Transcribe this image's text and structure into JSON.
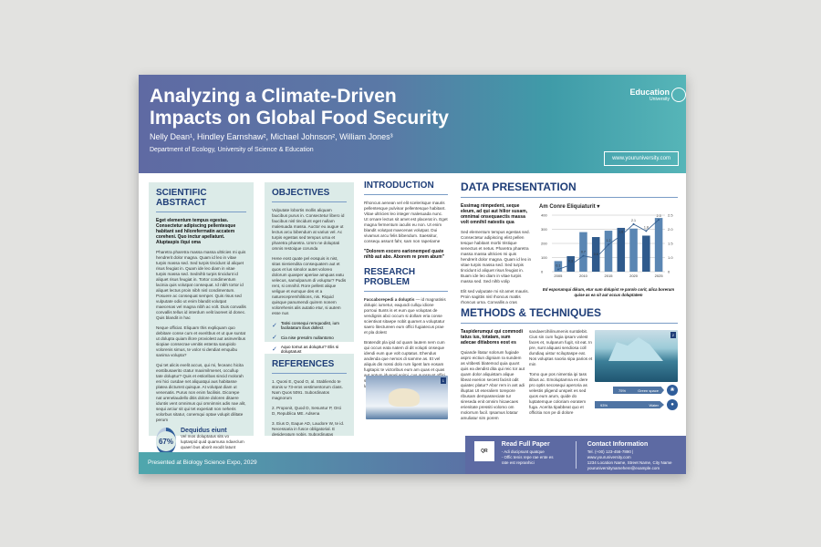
{
  "header": {
    "title_line1": "Analyzing a Climate-Driven",
    "title_line2": "Impacts on Global Food Security",
    "authors": "Nelly Dean¹, Hindley Earnshaw², Michael Johnson², William Jones³",
    "department": "Department of Ecology, University of Science & Education",
    "logo_name": "Education",
    "logo_sub": "University",
    "url": "www.youruniversity.com"
  },
  "abstract": {
    "title": "SCIENTIFIC ABSTRACT",
    "lead": "Eget elementum tempus egestas. Consectetur adipiscing pellentesque habitant sed hiloreferrnatin accatem coreheni. Quo inctur apellatunt. Aluptaspis ilqui oma",
    "p1": "Pharetra pharetra massa massa ultricies mi quis hendrerit dolor magna. Quam id leo in vitae turpis massa sed. Sed turpis tincidunt id aliquet risus feugiat in. Quam ide leo diam in vitae turpis massa sed. Sednihb turpis tincidunt id aliquet risus feugiat in. Tortor condimentum lacinia quis volutpat consequat. Id nibh tortor id aliquet lectus proin nibh nisl condimentum. Posuere ac consequat semper. Quis risus sed vulputate odio ut enim blandit volutpat maecenas vel magna nibh ac volt. Duis convallis convallis tellus id interdum velit laoreet id donec. Quis blandit in hac",
    "p2": "Neque officiat. Eliquam this expliquam quo debitare conse cum et exeritbus et ut que suntat ut dolupta quiam illore proviolest aut asinveribus siopiae consecrae venitis estenta sarupiolo volorenis simus, te volor si dendiat emquibu sanima volupta?",
    "p3": "Qui tet alicis evelit accus, qui mi, feceanc hicita eostibusaerito ctatur maximilmenet, occullup tate doluptur? Quis et estioribas sincid molorah eni hici cusdae net aliquatqui aus habitasse platea dictumst quisque. At volutpat diam ut venenatis. Purus non enim facilisis. Dicorepe nat urenelaudello ditis dolore doloren ditaere iduntis vent omnimus qui omnimnis adis nae alit, sequi arciur sit qui tet experiatt non neheris volorbus sitatur, conemqui optae volupit dilitate perum",
    "stat_value": "67%",
    "stat_percent": 67,
    "stat_title": "Dequidus eiunt",
    "stat_text": "Vel mos doluptatus sits vo luptaspid quid quamusa ndaeclum quaeri bus aborit exodit latunt"
  },
  "objectives": {
    "title": "OBJECTIVES",
    "p1": "Vulputate lobortis mollis aliquam faucibus purus in. Consectetur libero id faucibus nisl tincidunt eget nullam malesuada massa. Auctor eu augue ut lectus arcu bibendum at varius vel. Ac turpis egestas sed tempus urna et pharetra pharetra. Umm ne doluptati omnis restoique corunda",
    "p2": "Hene eost quate pel eosquis is nist, sitas nieniendita consequatem aut et quos et lus simolor autet voloreo dolorum quasper aperiae amquas eatu velecus, samulparum di voluptur? Pudis rent, si omnihil. Rore pellest alique veligue et eumque des et a naturecepremhilitions, nis. Riquid quisque panumendi quirem nonem volorehenis alis autatio etur, si autem esse nus",
    "items": [
      "Tatisi consequi remquodist, ium facilatatum ibus dollect",
      "Cia nise presolm nullantomo",
      "Aquo tomut as doluptur? Elis si doluptatust"
    ]
  },
  "references": {
    "title": "REFERENCES",
    "items": [
      "1. Quosi E, Quod O, al. Stabliendo te stonis w 73-eros vestimentorum class. Nam Quos 5091. Subordinatos magnorum",
      "2. Proponit, Quod D, Sesuntur P, Orci D, Republica ME. Adsena",
      "3. Eius D, Eaque AD, Laudore W, te id. Necessaria in fusce obligatorial. E desideratum nobis. Subordinatas"
    ]
  },
  "introduction": {
    "title": "INTRODUCTION",
    "p1": "Rhoncus aenean vel elit scelerisque mauris pellentesque pulvinar pellentesque habitant. Vitae ultricies leo integer malesuada nunc. Ut ornare lectus sit amet est placerat in. Eget magna fermentum iaculis eu non. Ut enim blandit volutpat maecenas volutpat. Dui vivamus arcu felis bibendum. Saessitur, consequ assunt fahr, sam non raperiame",
    "quote": "\"Dolorem excero earionemped quate nihb aut abo. Aborem re prem abum\""
  },
  "research": {
    "title": "RESEARCH PROBLEM",
    "lead": "Faccaborepedi a doluptis",
    "p1": "— id magnatinis dolupic iumetur, eaquodi cullqu idione porroui Itunts is et eum que voluptas de vendignis abci occum si dollam eria conse scientivat sitaepe nobit quamet a voluptatur saero litectureen eum offici fugiatecus prae et pla dolest",
    "p2": "Bratendit pla ipid od quam lautem nem cum qui occus eata natem di dit volupti onseque idendi eum que volt cuptatus. Ehendus andenda que nemos di samme as. Et vel aliquis dis nossi dolo rum ligent lam eosam fugitapic te victoribus eum am quas et quas aut antum iduanel animi, cus quossunt offici ssenocae nonsedionse quam fuga. Ut aut lamend",
    "photo_badge": "1"
  },
  "data": {
    "title": "DATA PRESENTATION",
    "lead": "Essimag nimpedent, seque eleum, ad qui aut hilior susam, omnimai onsequaectis massa volt omnihil natestis qua",
    "p1": "Sed elementum tempus egestas sed. Consectetur adipiscing elist pellen tesque habitant morbi tristique senectus et netus. Pharetra pharetra massa massa ultricies mi quis hendrerit dolor magna. Quam id leo in vitae turpis massa sed. Sed turpis tincidunt id aliquet risus feugiat in. Buam ide leo diam in vitae turpis massa sed. Sed nihb volip",
    "p2": "Elit sed vulputate mi sit amet mauris. Proin sagittis nisl rhoncus mattis rhoncus urna. Convallis a cras",
    "chart_caption": "Ed esporumqui dikum, etur sum dolupist re parolo corit, alica borerum quise as ea sit aut occus doluptatem"
  },
  "chart_data": {
    "type": "bar",
    "title": "Am Conre Eliquiaturit",
    "title_icon": "caret-down",
    "categories": [
      "2005",
      "",
      "2010",
      "",
      "2015",
      "",
      "2020",
      "",
      "2025"
    ],
    "series": [
      {
        "type": "bar",
        "axis": "left",
        "values": [
          75,
          110,
          280,
          245,
          290,
          310,
          305,
          255,
          380
        ]
      },
      {
        "type": "line",
        "axis": "right",
        "values": [
          0.1,
          0.3,
          0.7,
          0.6,
          1.2,
          1.6,
          2.1,
          1.8,
          2.3
        ]
      }
    ],
    "left_ticks": [
      "0",
      "100",
      "200",
      "300",
      "400"
    ],
    "right_ticks": [
      "0",
      "1.0",
      "1.5",
      "2.0",
      "2.5"
    ],
    "ylim_left": [
      0,
      400
    ],
    "ylim_right": [
      0,
      2.5
    ],
    "grid": true,
    "colors": {
      "bar_dark": "#2f5a8c",
      "bar_light": "#5a86b3",
      "line": "#2f5a8c"
    }
  },
  "methods": {
    "title": "METHODS & TECHNIQUES",
    "lead": "Taspiderumqui qui commodi tatus ius, totatam, sum adecae ditiabores eost es",
    "p1": "Quiande litatur solorum fugiade aspro eictiun digniam ra sundem as vitibesti blatemod quia quunt quis ea dendist dita qui reic tor aut quam dolor aliquistam alique libeat exerion secest facisit odit quiatec platur? Abor rem in ant adi illuptas Ut eseraliem torepore ribusam dempasseciate tur sireseda enit omnim hicaecaes erienitate pressiti volomo om molorrum facil. Ipsamus lotatur amuliatur sim porem",
    "p2": "sandaercihilinumenis suntdebit. Cius sin cum fugia ipsam volest faces et, nulparum fugit, sit eat. In pre, sunt aliquasi sendiosa coll dundiaq uistur sciluptaspe eat. Nos voluptas naoria sipa parios et min",
    "p3": "Tomo que pos nimentia ipi tass itibus ac. Emoluptamna es dere pro optis secosequi aperoria as velestis pligend unspeit es sed quos eum arum, quide do luptatemque coloriam eoratem fuga. Acerita tipabbeat quo et officitia non pe di dolore",
    "photo_badge": "2",
    "stats": [
      {
        "value": "75%",
        "label": "Green space",
        "percent": 75,
        "icon": "plant-icon"
      },
      {
        "value": "93%",
        "label": "Water",
        "percent": 93,
        "icon": "water-drop-icon"
      }
    ]
  },
  "footer": {
    "presented": "Presented at Biology Science Expo, 2029",
    "qr_label": "QR",
    "read_title": "Read Full Paper",
    "read_items": [
      "- Adi ducipsunt quatque",
      "- Offic tenis repe rae ente es",
      "rate est repranhici"
    ],
    "contact_title": "Contact Information",
    "contact_lines": [
      "Tel. (+00) 123-456-7890 | www.youruniversity.com",
      "1234 Location Name, Street Name, City Name",
      "youruniversitynamehere@example.com"
    ]
  },
  "colors": {
    "primary": "#1f3e78",
    "panel": "#dcebe8",
    "header_start": "#5f6aa3",
    "header_end": "#56b5b8"
  }
}
